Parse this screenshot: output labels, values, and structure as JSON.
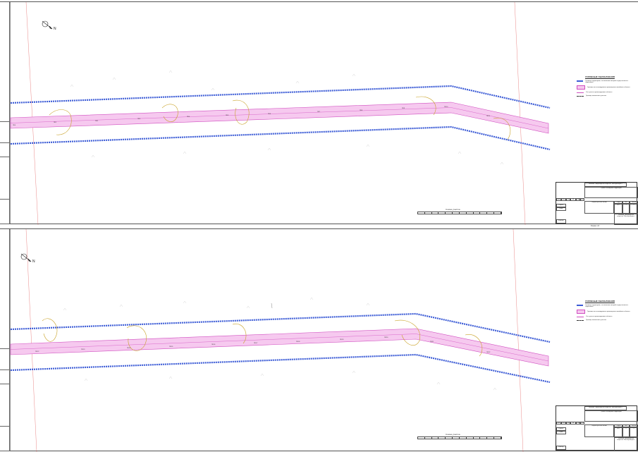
{
  "sheets": [
    {
      "north_label": "N",
      "legend": {
        "title": "УСЛОВНЫЕ ОБОЗНАЧЕНИЯ",
        "items": [
          "Граница территории, в отношении которой осуществляется подготовка",
          "Граница зон планируемого размещения линейного объекта",
          "Ось трассы проектируемого объекта",
          "Граница земельного участка"
        ]
      },
      "titleblock": {
        "organization": "Заказчик - Акционерное общество \"Мосгоргеотрест\"",
        "project_title": "Проект планировки территории",
        "drawing_title": "Чертеж красных линий",
        "stage": "ППТ",
        "sheet": "1",
        "sheets": "2",
        "roles": [
          "Разраб.",
          "Пров.",
          "Н.контр."
        ],
        "columns": [
          "Изм.",
          "Кол.уч",
          "Лист",
          "№ док.",
          "Подп.",
          "Дата"
        ],
        "fields": [
          "Стадия",
          "Лист",
          "Листов"
        ]
      },
      "scale_label": "Схема участка",
      "format_note": "Формат А3"
    },
    {
      "north_label": "N",
      "legend": {
        "title": "УСЛОВНЫЕ ОБОЗНАЧЕНИЯ",
        "items": [
          "Граница территории, в отношении которой осуществляется подготовка",
          "Граница зон планируемого размещения линейного объекта",
          "Ось трассы проектируемого объекта",
          "Граница земельного участка"
        ]
      },
      "titleblock": {
        "organization": "Заказчик - Акционерное общество \"Мосгоргеотрест\"",
        "project_title": "Проект планировки территории",
        "drawing_title": "Чертеж красных линий",
        "stage": "ППТ",
        "sheet": "2",
        "sheets": "2",
        "roles": [
          "Разраб.",
          "Пров.",
          "Н.контр."
        ],
        "columns": [
          "Изм.",
          "Кол.уч",
          "Лист",
          "№ док.",
          "Подп.",
          "Дата"
        ],
        "fields": [
          "Стадия",
          "Лист",
          "Листов"
        ]
      },
      "scale_label": "Схема участка",
      "format_note": "Формат А3"
    }
  ],
  "colors": {
    "corridor_fill": "#f6c9ef",
    "corridor_edge": "#d04fc0",
    "boundary": "#3b5bd6",
    "contour": "#c9a227",
    "red_line": "#e05555"
  }
}
